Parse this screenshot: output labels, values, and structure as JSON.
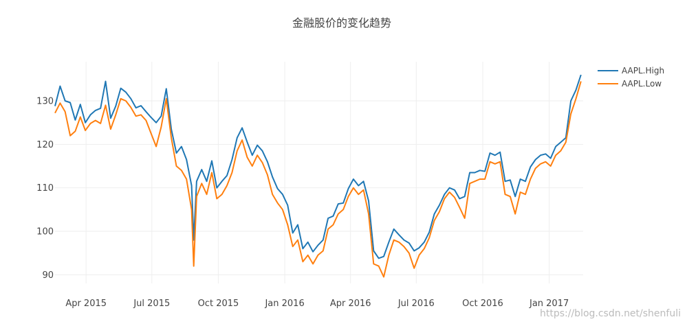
{
  "chart_data": {
    "type": "line",
    "title": "金融股价的变化趋势",
    "xlabel": "",
    "ylabel": "",
    "x_ticks": [
      "Apr 2015",
      "Jul 2015",
      "Oct 2015",
      "Jan 2016",
      "Apr 2016",
      "Jul 2016",
      "Oct 2016",
      "Jan 2017"
    ],
    "x_tick_dates": [
      "2015-04-01",
      "2015-07-01",
      "2015-10-01",
      "2016-01-01",
      "2016-04-01",
      "2016-07-01",
      "2016-10-01",
      "2017-01-01"
    ],
    "y_ticks": [
      90,
      100,
      110,
      120,
      130
    ],
    "xlim": [
      "2015-02-17",
      "2017-02-17"
    ],
    "ylim": [
      88,
      139
    ],
    "grid": true,
    "legend_position": "top-right",
    "series": [
      {
        "name": "AAPL.High",
        "color": "#1f77b4",
        "points": [
          [
            "2015-02-17",
            128.8
          ],
          [
            "2015-02-24",
            133.4
          ],
          [
            "2015-03-03",
            130.0
          ],
          [
            "2015-03-10",
            129.6
          ],
          [
            "2015-03-17",
            125.6
          ],
          [
            "2015-03-24",
            129.2
          ],
          [
            "2015-03-31",
            125.0
          ],
          [
            "2015-04-07",
            126.8
          ],
          [
            "2015-04-14",
            127.8
          ],
          [
            "2015-04-21",
            128.3
          ],
          [
            "2015-04-28",
            134.5
          ],
          [
            "2015-05-05",
            126.0
          ],
          [
            "2015-05-12",
            128.8
          ],
          [
            "2015-05-19",
            132.9
          ],
          [
            "2015-05-26",
            132.0
          ],
          [
            "2015-06-02",
            130.5
          ],
          [
            "2015-06-09",
            128.4
          ],
          [
            "2015-06-16",
            128.9
          ],
          [
            "2015-06-23",
            127.5
          ],
          [
            "2015-06-30",
            126.2
          ],
          [
            "2015-07-07",
            125.0
          ],
          [
            "2015-07-14",
            126.5
          ],
          [
            "2015-07-21",
            132.8
          ],
          [
            "2015-07-28",
            123.5
          ],
          [
            "2015-08-04",
            118.0
          ],
          [
            "2015-08-11",
            119.5
          ],
          [
            "2015-08-18",
            116.5
          ],
          [
            "2015-08-25",
            110.5
          ],
          [
            "2015-08-28",
            98.0
          ],
          [
            "2015-09-01",
            111.5
          ],
          [
            "2015-09-08",
            114.2
          ],
          [
            "2015-09-15",
            111.5
          ],
          [
            "2015-09-22",
            116.2
          ],
          [
            "2015-09-29",
            110.0
          ],
          [
            "2015-10-06",
            111.5
          ],
          [
            "2015-10-13",
            112.8
          ],
          [
            "2015-10-20",
            116.5
          ],
          [
            "2015-10-27",
            121.5
          ],
          [
            "2015-11-03",
            123.8
          ],
          [
            "2015-11-10",
            120.5
          ],
          [
            "2015-11-17",
            117.5
          ],
          [
            "2015-11-24",
            119.8
          ],
          [
            "2015-12-01",
            118.5
          ],
          [
            "2015-12-08",
            116.0
          ],
          [
            "2015-12-15",
            112.5
          ],
          [
            "2015-12-22",
            109.8
          ],
          [
            "2015-12-29",
            108.5
          ],
          [
            "2016-01-05",
            106.0
          ],
          [
            "2016-01-12",
            99.6
          ],
          [
            "2016-01-19",
            101.5
          ],
          [
            "2016-01-26",
            96.0
          ],
          [
            "2016-02-02",
            97.5
          ],
          [
            "2016-02-09",
            95.3
          ],
          [
            "2016-02-16",
            96.8
          ],
          [
            "2016-02-23",
            98.0
          ],
          [
            "2016-03-01",
            103.0
          ],
          [
            "2016-03-08",
            103.5
          ],
          [
            "2016-03-15",
            106.3
          ],
          [
            "2016-03-22",
            106.5
          ],
          [
            "2016-03-29",
            109.8
          ],
          [
            "2016-04-05",
            112.0
          ],
          [
            "2016-04-12",
            110.5
          ],
          [
            "2016-04-19",
            111.5
          ],
          [
            "2016-04-26",
            107.0
          ],
          [
            "2016-05-03",
            95.5
          ],
          [
            "2016-05-10",
            93.8
          ],
          [
            "2016-05-17",
            94.2
          ],
          [
            "2016-05-24",
            97.5
          ],
          [
            "2016-05-31",
            100.5
          ],
          [
            "2016-06-07",
            99.2
          ],
          [
            "2016-06-14",
            98.0
          ],
          [
            "2016-06-21",
            97.3
          ],
          [
            "2016-06-28",
            95.5
          ],
          [
            "2016-07-05",
            96.2
          ],
          [
            "2016-07-12",
            97.5
          ],
          [
            "2016-07-19",
            99.8
          ],
          [
            "2016-07-26",
            104.0
          ],
          [
            "2016-08-02",
            106.0
          ],
          [
            "2016-08-09",
            108.5
          ],
          [
            "2016-08-16",
            110.0
          ],
          [
            "2016-08-23",
            109.5
          ],
          [
            "2016-08-30",
            107.5
          ],
          [
            "2016-09-06",
            108.0
          ],
          [
            "2016-09-13",
            113.5
          ],
          [
            "2016-09-20",
            113.5
          ],
          [
            "2016-09-27",
            114.0
          ],
          [
            "2016-10-04",
            113.8
          ],
          [
            "2016-10-11",
            118.0
          ],
          [
            "2016-10-18",
            117.5
          ],
          [
            "2016-10-25",
            118.2
          ],
          [
            "2016-11-01",
            111.5
          ],
          [
            "2016-11-08",
            111.8
          ],
          [
            "2016-11-15",
            108.0
          ],
          [
            "2016-11-22",
            112.0
          ],
          [
            "2016-11-29",
            111.5
          ],
          [
            "2016-12-06",
            114.8
          ],
          [
            "2016-12-13",
            116.5
          ],
          [
            "2016-12-20",
            117.5
          ],
          [
            "2016-12-27",
            117.8
          ],
          [
            "2017-01-03",
            116.8
          ],
          [
            "2017-01-10",
            119.5
          ],
          [
            "2017-01-17",
            120.5
          ],
          [
            "2017-01-24",
            121.5
          ],
          [
            "2017-01-31",
            130.0
          ],
          [
            "2017-02-07",
            132.5
          ],
          [
            "2017-02-14",
            136.0
          ]
        ]
      },
      {
        "name": "AAPL.Low",
        "color": "#ff7f0e",
        "points": [
          [
            "2015-02-17",
            127.2
          ],
          [
            "2015-02-24",
            129.5
          ],
          [
            "2015-03-03",
            127.5
          ],
          [
            "2015-03-10",
            122.0
          ],
          [
            "2015-03-17",
            123.0
          ],
          [
            "2015-03-24",
            126.3
          ],
          [
            "2015-03-31",
            123.2
          ],
          [
            "2015-04-07",
            124.8
          ],
          [
            "2015-04-14",
            125.5
          ],
          [
            "2015-04-21",
            124.8
          ],
          [
            "2015-04-28",
            129.0
          ],
          [
            "2015-05-05",
            123.5
          ],
          [
            "2015-05-12",
            126.8
          ],
          [
            "2015-05-19",
            130.5
          ],
          [
            "2015-05-26",
            130.0
          ],
          [
            "2015-06-02",
            128.5
          ],
          [
            "2015-06-09",
            126.5
          ],
          [
            "2015-06-16",
            126.8
          ],
          [
            "2015-06-23",
            125.5
          ],
          [
            "2015-06-30",
            122.5
          ],
          [
            "2015-07-07",
            119.5
          ],
          [
            "2015-07-14",
            124.0
          ],
          [
            "2015-07-21",
            130.5
          ],
          [
            "2015-07-28",
            121.5
          ],
          [
            "2015-08-04",
            115.0
          ],
          [
            "2015-08-11",
            114.0
          ],
          [
            "2015-08-18",
            112.0
          ],
          [
            "2015-08-25",
            105.0
          ],
          [
            "2015-08-28",
            92.0
          ],
          [
            "2015-09-01",
            108.0
          ],
          [
            "2015-09-08",
            111.0
          ],
          [
            "2015-09-15",
            108.5
          ],
          [
            "2015-09-22",
            113.5
          ],
          [
            "2015-09-29",
            107.5
          ],
          [
            "2015-10-06",
            108.5
          ],
          [
            "2015-10-13",
            110.5
          ],
          [
            "2015-10-20",
            113.5
          ],
          [
            "2015-10-27",
            118.5
          ],
          [
            "2015-11-03",
            121.0
          ],
          [
            "2015-11-10",
            117.0
          ],
          [
            "2015-11-17",
            115.0
          ],
          [
            "2015-11-24",
            117.5
          ],
          [
            "2015-12-01",
            115.8
          ],
          [
            "2015-12-08",
            113.0
          ],
          [
            "2015-12-15",
            108.5
          ],
          [
            "2015-12-22",
            106.5
          ],
          [
            "2015-12-29",
            105.0
          ],
          [
            "2016-01-05",
            101.5
          ],
          [
            "2016-01-12",
            96.5
          ],
          [
            "2016-01-19",
            98.0
          ],
          [
            "2016-01-26",
            93.0
          ],
          [
            "2016-02-02",
            94.5
          ],
          [
            "2016-02-09",
            92.5
          ],
          [
            "2016-02-16",
            94.5
          ],
          [
            "2016-02-23",
            95.5
          ],
          [
            "2016-03-01",
            100.5
          ],
          [
            "2016-03-08",
            101.5
          ],
          [
            "2016-03-15",
            104.0
          ],
          [
            "2016-03-22",
            105.0
          ],
          [
            "2016-03-29",
            108.0
          ],
          [
            "2016-04-05",
            110.0
          ],
          [
            "2016-04-12",
            108.5
          ],
          [
            "2016-04-19",
            109.5
          ],
          [
            "2016-04-26",
            104.0
          ],
          [
            "2016-05-03",
            92.5
          ],
          [
            "2016-05-10",
            92.0
          ],
          [
            "2016-05-17",
            89.5
          ],
          [
            "2016-05-24",
            94.5
          ],
          [
            "2016-05-31",
            98.0
          ],
          [
            "2016-06-07",
            97.5
          ],
          [
            "2016-06-14",
            96.5
          ],
          [
            "2016-06-21",
            95.0
          ],
          [
            "2016-06-28",
            91.5
          ],
          [
            "2016-07-05",
            94.5
          ],
          [
            "2016-07-12",
            96.0
          ],
          [
            "2016-07-19",
            98.5
          ],
          [
            "2016-07-26",
            102.5
          ],
          [
            "2016-08-02",
            104.5
          ],
          [
            "2016-08-09",
            107.5
          ],
          [
            "2016-08-16",
            109.0
          ],
          [
            "2016-08-23",
            107.8
          ],
          [
            "2016-08-30",
            105.5
          ],
          [
            "2016-09-06",
            103.0
          ],
          [
            "2016-09-13",
            111.0
          ],
          [
            "2016-09-20",
            111.5
          ],
          [
            "2016-09-27",
            112.0
          ],
          [
            "2016-10-04",
            112.0
          ],
          [
            "2016-10-11",
            116.0
          ],
          [
            "2016-10-18",
            115.5
          ],
          [
            "2016-10-25",
            116.0
          ],
          [
            "2016-11-01",
            108.5
          ],
          [
            "2016-11-08",
            108.0
          ],
          [
            "2016-11-15",
            104.0
          ],
          [
            "2016-11-22",
            109.0
          ],
          [
            "2016-11-29",
            108.5
          ],
          [
            "2016-12-06",
            112.0
          ],
          [
            "2016-12-13",
            114.5
          ],
          [
            "2016-12-20",
            115.5
          ],
          [
            "2016-12-27",
            116.0
          ],
          [
            "2017-01-03",
            115.0
          ],
          [
            "2017-01-10",
            117.5
          ],
          [
            "2017-01-17",
            118.5
          ],
          [
            "2017-01-24",
            120.5
          ],
          [
            "2017-01-31",
            127.0
          ],
          [
            "2017-02-07",
            130.5
          ],
          [
            "2017-02-14",
            134.5
          ]
        ]
      }
    ]
  },
  "watermark": "https://blog.csdn.net/shenfuli"
}
